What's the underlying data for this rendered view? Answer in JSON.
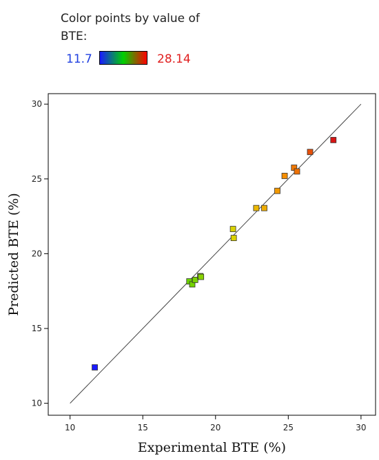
{
  "legend": {
    "title": "Color points by value of BTE:",
    "min_label": "11.7",
    "max_label": "28.14",
    "min_color": "#1f3fe0",
    "max_color": "#e02020",
    "gradient": [
      "#1a1aff",
      "#00d000",
      "#ff0000"
    ]
  },
  "chart_data": {
    "type": "scatter",
    "xlabel": "Experimental BTE (%)",
    "ylabel": "Predicted BTE (%)",
    "xlim": [
      8.5,
      31
    ],
    "ylim": [
      9.2,
      30.7
    ],
    "xticks": [
      10,
      15,
      20,
      25,
      30
    ],
    "yticks": [
      10,
      15,
      20,
      25,
      30
    ],
    "grid": false,
    "reference_line": [
      [
        10,
        10
      ],
      [
        30,
        30
      ]
    ],
    "color_scale": {
      "min": 11.7,
      "max": 28.14
    },
    "points": [
      {
        "x": 11.7,
        "y": 12.4
      },
      {
        "x": 18.2,
        "y": 18.15
      },
      {
        "x": 18.4,
        "y": 17.95
      },
      {
        "x": 18.6,
        "y": 18.25
      },
      {
        "x": 18.95,
        "y": 18.5
      },
      {
        "x": 19.0,
        "y": 18.45
      },
      {
        "x": 21.2,
        "y": 21.65
      },
      {
        "x": 21.25,
        "y": 21.05
      },
      {
        "x": 22.8,
        "y": 23.05
      },
      {
        "x": 23.35,
        "y": 23.05
      },
      {
        "x": 24.25,
        "y": 24.2
      },
      {
        "x": 24.75,
        "y": 25.2
      },
      {
        "x": 25.4,
        "y": 25.75
      },
      {
        "x": 25.6,
        "y": 25.5
      },
      {
        "x": 26.5,
        "y": 26.8
      },
      {
        "x": 28.1,
        "y": 27.6
      }
    ]
  }
}
